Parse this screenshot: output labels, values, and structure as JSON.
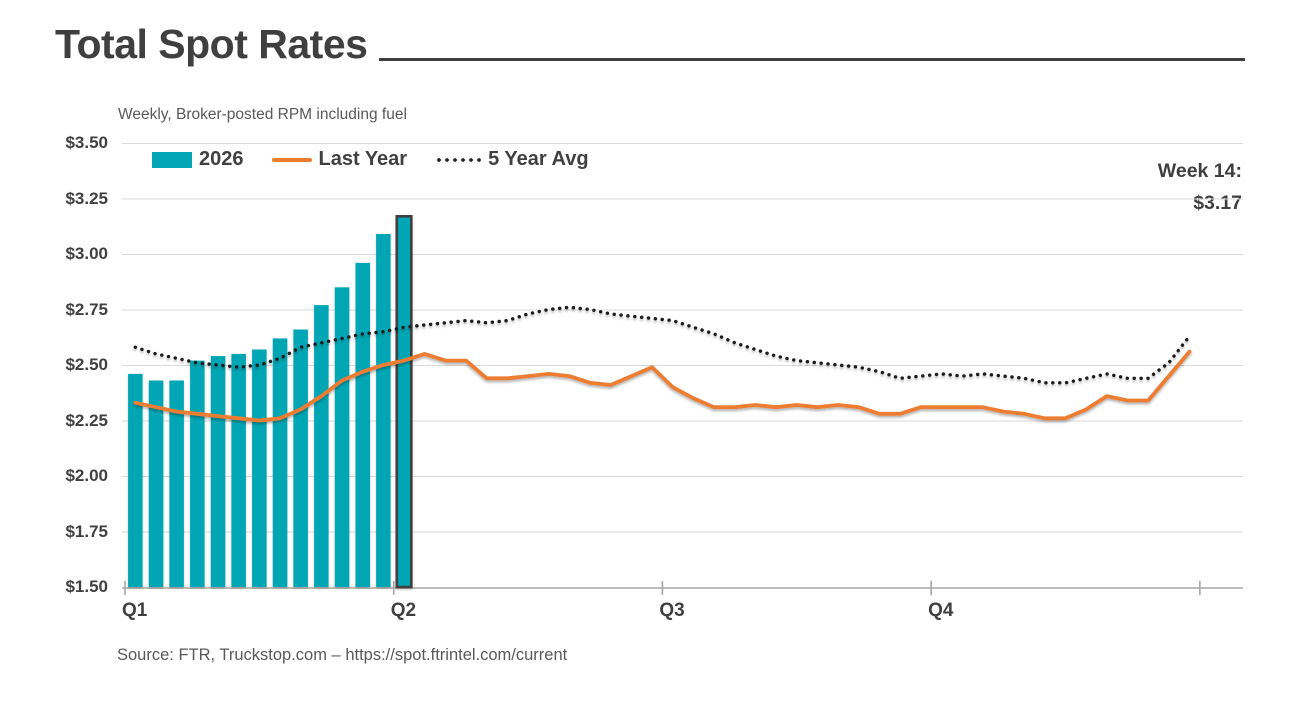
{
  "header": {
    "title": "Total Spot Rates"
  },
  "chart": {
    "subtitle": "Weekly, Broker-posted RPM including fuel",
    "legend": {
      "bar_label": "2026",
      "line_label": "Last Year",
      "dotted_label": "5 Year Avg"
    },
    "annotation": {
      "week_label": "Week 14:",
      "value_label": "$3.17"
    }
  },
  "footer": {
    "source": "Source: FTR, Truckstop.com – https://spot.ftrintel.com/current"
  },
  "colors": {
    "teal": "#03A6B4",
    "orange": "#ED7D31",
    "dotted": "#1F1F1F",
    "text_dark": "#404040",
    "text_gray": "#595959",
    "gridline": "#D9D9D9",
    "axis": "#A6A6A6",
    "highlight_border": "#3F3F3F"
  },
  "chart_data": {
    "type": "combo_bar_line",
    "title": "Total Spot Rates",
    "subtitle": "Weekly, Broker-posted RPM including fuel",
    "x_axis": {
      "unit": "week",
      "weeks": 52,
      "weeks_per_quarter": 13,
      "quarter_labels": [
        "Q1",
        "Q2",
        "Q3",
        "Q4"
      ]
    },
    "y_axis": {
      "min": 1.5,
      "max": 3.5,
      "step": 0.25,
      "tick_labels": [
        "$3.50",
        "$3.25",
        "$3.00",
        "$2.75",
        "$2.50",
        "$2.25",
        "$2.00",
        "$1.75",
        "$1.50"
      ]
    },
    "grid": true,
    "legend_position": "top-left",
    "series": [
      {
        "name": "2026",
        "type": "bar",
        "color": "#03A6B4",
        "start_week": 1,
        "values": [
          2.46,
          2.43,
          2.43,
          2.52,
          2.54,
          2.55,
          2.57,
          2.62,
          2.66,
          2.77,
          2.85,
          2.96,
          3.09,
          3.17
        ]
      },
      {
        "name": "Last Year",
        "type": "line",
        "color": "#ED7D31",
        "start_week": 1,
        "values": [
          2.33,
          2.31,
          2.29,
          2.28,
          2.27,
          2.26,
          2.25,
          2.26,
          2.3,
          2.36,
          2.43,
          2.47,
          2.5,
          2.52,
          2.55,
          2.52,
          2.52,
          2.44,
          2.44,
          2.45,
          2.46,
          2.45,
          2.42,
          2.41,
          2.45,
          2.49,
          2.4,
          2.35,
          2.31,
          2.31,
          2.32,
          2.31,
          2.32,
          2.31,
          2.32,
          2.31,
          2.28,
          2.28,
          2.31,
          2.31,
          2.31,
          2.31,
          2.29,
          2.28,
          2.26,
          2.26,
          2.3,
          2.36,
          2.34,
          2.34,
          2.45,
          2.56
        ]
      },
      {
        "name": "5 Year Avg",
        "type": "dotted_line",
        "color": "#1F1F1F",
        "start_week": 1,
        "values": [
          2.58,
          2.55,
          2.53,
          2.51,
          2.5,
          2.49,
          2.5,
          2.53,
          2.58,
          2.6,
          2.62,
          2.64,
          2.65,
          2.67,
          2.68,
          2.69,
          2.7,
          2.69,
          2.7,
          2.73,
          2.75,
          2.76,
          2.75,
          2.73,
          2.72,
          2.71,
          2.7,
          2.67,
          2.64,
          2.6,
          2.57,
          2.54,
          2.52,
          2.51,
          2.5,
          2.49,
          2.47,
          2.44,
          2.45,
          2.46,
          2.45,
          2.46,
          2.45,
          2.44,
          2.42,
          2.42,
          2.44,
          2.46,
          2.44,
          2.44,
          2.51,
          2.63
        ]
      }
    ],
    "highlight": {
      "series": "2026",
      "week": 14,
      "value": 3.17,
      "annotation": "Week 14: $3.17"
    }
  }
}
